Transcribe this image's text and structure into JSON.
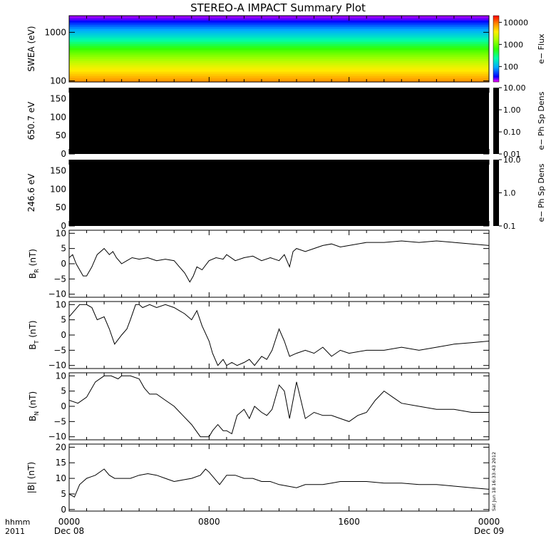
{
  "title": "STEREO-A IMPACT Summary Plot",
  "timestamp_text": "Sat Jun 18 16:33:43 2012",
  "time_axis": {
    "ticks": [
      {
        "hour": 0,
        "label": "0000",
        "sublabel": "Dec 08"
      },
      {
        "hour": 8,
        "label": "0800",
        "sublabel": ""
      },
      {
        "hour": 16,
        "label": "1600",
        "sublabel": ""
      },
      {
        "hour": 24,
        "label": "0000",
        "sublabel": "Dec 09"
      }
    ],
    "hhmm_label": "hhmm",
    "year_label": "2011",
    "range": [
      0,
      24
    ]
  },
  "chart_data": [
    {
      "type": "heatmap",
      "id": "swea",
      "ylabel": "SWEA (eV)",
      "yscale": "log",
      "ylim": [
        95,
        2200
      ],
      "yticks": [
        {
          "value": 100,
          "label": "100"
        },
        {
          "value": 1000,
          "label": "1000"
        }
      ],
      "colorbar": {
        "scale": "log",
        "range": [
          20,
          20000
        ],
        "label": "e− Flux",
        "ticks": [
          {
            "value": 100,
            "label": "100"
          },
          {
            "value": 1000,
            "label": "1000"
          },
          {
            "value": 10000,
            "label": "10000"
          }
        ]
      },
      "flux_profile": [
        {
          "energy": 100,
          "flux": 8000
        },
        {
          "energy": 200,
          "flux": 3000
        },
        {
          "energy": 400,
          "flux": 900
        },
        {
          "energy": 800,
          "flux": 180
        },
        {
          "energy": 1300,
          "flux": 70
        },
        {
          "energy": 2000,
          "flux": 25
        }
      ]
    },
    {
      "type": "heatmap",
      "id": "pad650",
      "ylabel": "650.7 eV",
      "ylim": [
        0,
        180
      ],
      "yticks": [
        {
          "value": 0,
          "label": "0"
        },
        {
          "value": 50,
          "label": "50"
        },
        {
          "value": 100,
          "label": "100"
        },
        {
          "value": 150,
          "label": "150"
        }
      ],
      "fill": "#000000",
      "colorbar": {
        "scale": "log",
        "range": [
          0.01,
          10
        ],
        "label": "e− Ph Sp Dens",
        "ticks": [
          {
            "value": 0.01,
            "label": "0.01"
          },
          {
            "value": 0.1,
            "label": "0.10"
          },
          {
            "value": 1,
            "label": "1.00"
          },
          {
            "value": 10,
            "label": "10.00"
          }
        ]
      }
    },
    {
      "type": "heatmap",
      "id": "pad246",
      "ylabel": "246.6 eV",
      "ylim": [
        0,
        180
      ],
      "yticks": [
        {
          "value": 0,
          "label": "0"
        },
        {
          "value": 50,
          "label": "50"
        },
        {
          "value": 100,
          "label": "100"
        },
        {
          "value": 150,
          "label": "150"
        }
      ],
      "fill": "#000000",
      "colorbar": {
        "scale": "log",
        "range": [
          0.1,
          10
        ],
        "label": "e− Ph Sp Dens",
        "ticks": [
          {
            "value": 0.1,
            "label": "0.1"
          },
          {
            "value": 1,
            "label": "1.0"
          },
          {
            "value": 10,
            "label": "10.0"
          }
        ]
      }
    },
    {
      "type": "line",
      "id": "br",
      "ylabel_main": "B",
      "ylabel_sub": "R",
      "ylabel_unit": " (nT)",
      "ylim": [
        -11,
        11
      ],
      "yticks": [
        {
          "value": -10,
          "label": "−10"
        },
        {
          "value": -5,
          "label": "−5"
        },
        {
          "value": 0,
          "label": "0"
        },
        {
          "value": 5,
          "label": "5"
        },
        {
          "value": 10,
          "label": "10"
        }
      ],
      "x": [
        0,
        0.2,
        0.4,
        0.6,
        0.8,
        1,
        1.3,
        1.6,
        2,
        2.3,
        2.5,
        2.7,
        3,
        3.3,
        3.6,
        4,
        4.5,
        5,
        5.5,
        6,
        6.3,
        6.6,
        6.9,
        7.1,
        7.3,
        7.6,
        8,
        8.4,
        8.8,
        9,
        9.5,
        10,
        10.5,
        11,
        11.5,
        12,
        12.3,
        12.6,
        12.8,
        13,
        13.5,
        14,
        14.5,
        15,
        15.5,
        16,
        17,
        18,
        19,
        20,
        21,
        22,
        23,
        24
      ],
      "y": [
        2,
        3,
        0,
        -2,
        -4,
        -4,
        -1,
        3,
        5,
        3,
        4,
        2,
        0,
        1,
        2,
        1.5,
        2,
        1,
        1.5,
        1,
        -1,
        -3,
        -6,
        -4,
        -1,
        -2,
        1,
        2,
        1.5,
        3,
        1,
        2,
        2.5,
        1,
        2,
        1,
        3,
        -1,
        4,
        5,
        4,
        5,
        6,
        6.5,
        5.5,
        6,
        7,
        7,
        7.5,
        7,
        7.5,
        7,
        6.5,
        6
      ]
    },
    {
      "type": "line",
      "id": "bt",
      "ylabel_main": "B",
      "ylabel_sub": "T",
      "ylabel_unit": " (nT)",
      "ylim": [
        -11,
        11
      ],
      "yticks": [
        {
          "value": -10,
          "label": "−10"
        },
        {
          "value": -5,
          "label": "−5"
        },
        {
          "value": 0,
          "label": "0"
        },
        {
          "value": 5,
          "label": "5"
        },
        {
          "value": 10,
          "label": "10"
        }
      ],
      "x": [
        0,
        0.3,
        0.6,
        1,
        1.3,
        1.6,
        2,
        2.3,
        2.6,
        3,
        3.3,
        3.5,
        3.8,
        4,
        4.2,
        4.6,
        5,
        5.5,
        6,
        6.3,
        6.6,
        7,
        7.3,
        7.6,
        8,
        8.2,
        8.5,
        8.8,
        9,
        9.3,
        9.6,
        10,
        10.3,
        10.6,
        11,
        11.3,
        11.6,
        12,
        12.3,
        12.6,
        13,
        13.5,
        14,
        14.5,
        15,
        15.5,
        16,
        17,
        18,
        19,
        20,
        21,
        22,
        23,
        24
      ],
      "y": [
        6,
        8,
        10,
        10,
        9,
        5,
        6,
        2,
        -3,
        0,
        2,
        5,
        10,
        10,
        9,
        10,
        9,
        10,
        9,
        8,
        7,
        5,
        8,
        3,
        -2,
        -6,
        -10,
        -8,
        -10,
        -9,
        -10,
        -9,
        -8,
        -10,
        -7,
        -8,
        -5,
        2,
        -2,
        -7,
        -6,
        -5,
        -6,
        -4,
        -7,
        -5,
        -6,
        -5,
        -5,
        -4,
        -5,
        -4,
        -3,
        -2.5,
        -2
      ]
    },
    {
      "type": "line",
      "id": "bn",
      "ylabel_main": "B",
      "ylabel_sub": "N",
      "ylabel_unit": " (nT)",
      "ylim": [
        -11,
        11
      ],
      "yticks": [
        {
          "value": -10,
          "label": "−10"
        },
        {
          "value": -5,
          "label": "−5"
        },
        {
          "value": 0,
          "label": "0"
        },
        {
          "value": 5,
          "label": "5"
        },
        {
          "value": 10,
          "label": "10"
        }
      ],
      "x": [
        0,
        0.5,
        1,
        1.5,
        2,
        2.4,
        2.8,
        3,
        3.5,
        4,
        4.3,
        4.6,
        5,
        5.5,
        6,
        6.5,
        7,
        7.5,
        8,
        8.2,
        8.5,
        8.8,
        9,
        9.3,
        9.6,
        10,
        10.3,
        10.6,
        11,
        11.3,
        11.6,
        12,
        12.3,
        12.6,
        13,
        13.5,
        14,
        14.5,
        15,
        15.5,
        16,
        16.5,
        17,
        17.5,
        18,
        18.5,
        19,
        20,
        21,
        22,
        23,
        24
      ],
      "y": [
        2,
        1,
        3,
        8,
        10,
        10,
        9,
        10,
        10,
        9,
        6,
        4,
        4,
        2,
        0,
        -3,
        -6,
        -10,
        -10,
        -8,
        -6,
        -8,
        -8,
        -9,
        -3,
        -1,
        -4,
        0,
        -2,
        -3,
        -1,
        7,
        5,
        -4,
        8,
        -4,
        -2,
        -3,
        -3,
        -4,
        -5,
        -3,
        -2,
        2,
        5,
        3,
        1,
        0,
        -1,
        -1,
        -2,
        -2
      ]
    },
    {
      "type": "line",
      "id": "bmag",
      "ylabel": "|B| (nT)",
      "ylim": [
        -0.5,
        21
      ],
      "yticks": [
        {
          "value": 0,
          "label": "0"
        },
        {
          "value": 5,
          "label": "5"
        },
        {
          "value": 10,
          "label": "10"
        },
        {
          "value": 15,
          "label": "15"
        },
        {
          "value": 20,
          "label": "20"
        }
      ],
      "x": [
        0,
        0.3,
        0.6,
        1,
        1.5,
        2,
        2.3,
        2.6,
        3,
        3.5,
        4,
        4.5,
        5,
        5.5,
        6,
        6.5,
        7,
        7.5,
        7.8,
        8,
        8.3,
        8.6,
        9,
        9.5,
        10,
        10.5,
        11,
        11.5,
        12,
        12.5,
        13,
        13.5,
        14,
        14.5,
        15,
        15.5,
        16,
        17,
        18,
        19,
        20,
        21,
        22,
        23,
        24
      ],
      "y": [
        5,
        4,
        8,
        10,
        11,
        13,
        11,
        10,
        10,
        10,
        11,
        11.5,
        11,
        10,
        9,
        9.5,
        10,
        11,
        13,
        12,
        10,
        8,
        11,
        11,
        10,
        10,
        9,
        9,
        8,
        7.5,
        7,
        8,
        8,
        8,
        8.5,
        9,
        9,
        9,
        8.5,
        8.5,
        8,
        8,
        7.5,
        7,
        6.5
      ]
    }
  ]
}
